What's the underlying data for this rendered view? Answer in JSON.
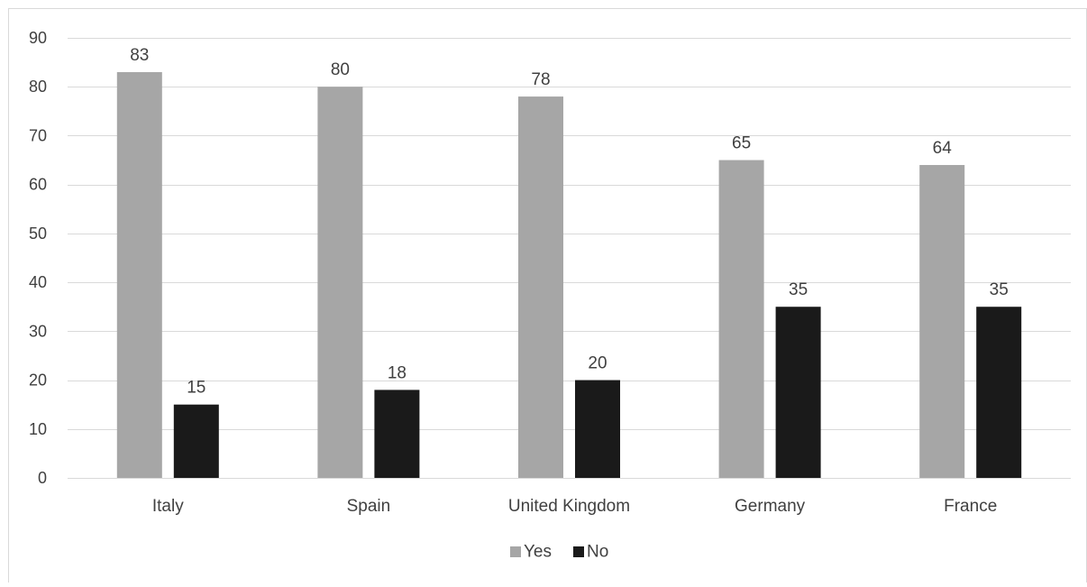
{
  "chart_data": {
    "type": "bar",
    "categories": [
      "Italy",
      "Spain",
      "United Kingdom",
      "Germany",
      "France"
    ],
    "series": [
      {
        "name": "Yes",
        "values": [
          83,
          80,
          78,
          65,
          64
        ],
        "color": "#a6a6a6"
      },
      {
        "name": "No",
        "values": [
          15,
          18,
          20,
          35,
          35
        ],
        "color": "#1a1a1a"
      }
    ],
    "yticks": [
      0,
      10,
      20,
      30,
      40,
      50,
      60,
      70,
      80,
      90
    ],
    "ylim": [
      0,
      90
    ],
    "grid": true,
    "data_labels": true,
    "legend_position": "bottom",
    "title": "",
    "xlabel": "",
    "ylabel": ""
  }
}
